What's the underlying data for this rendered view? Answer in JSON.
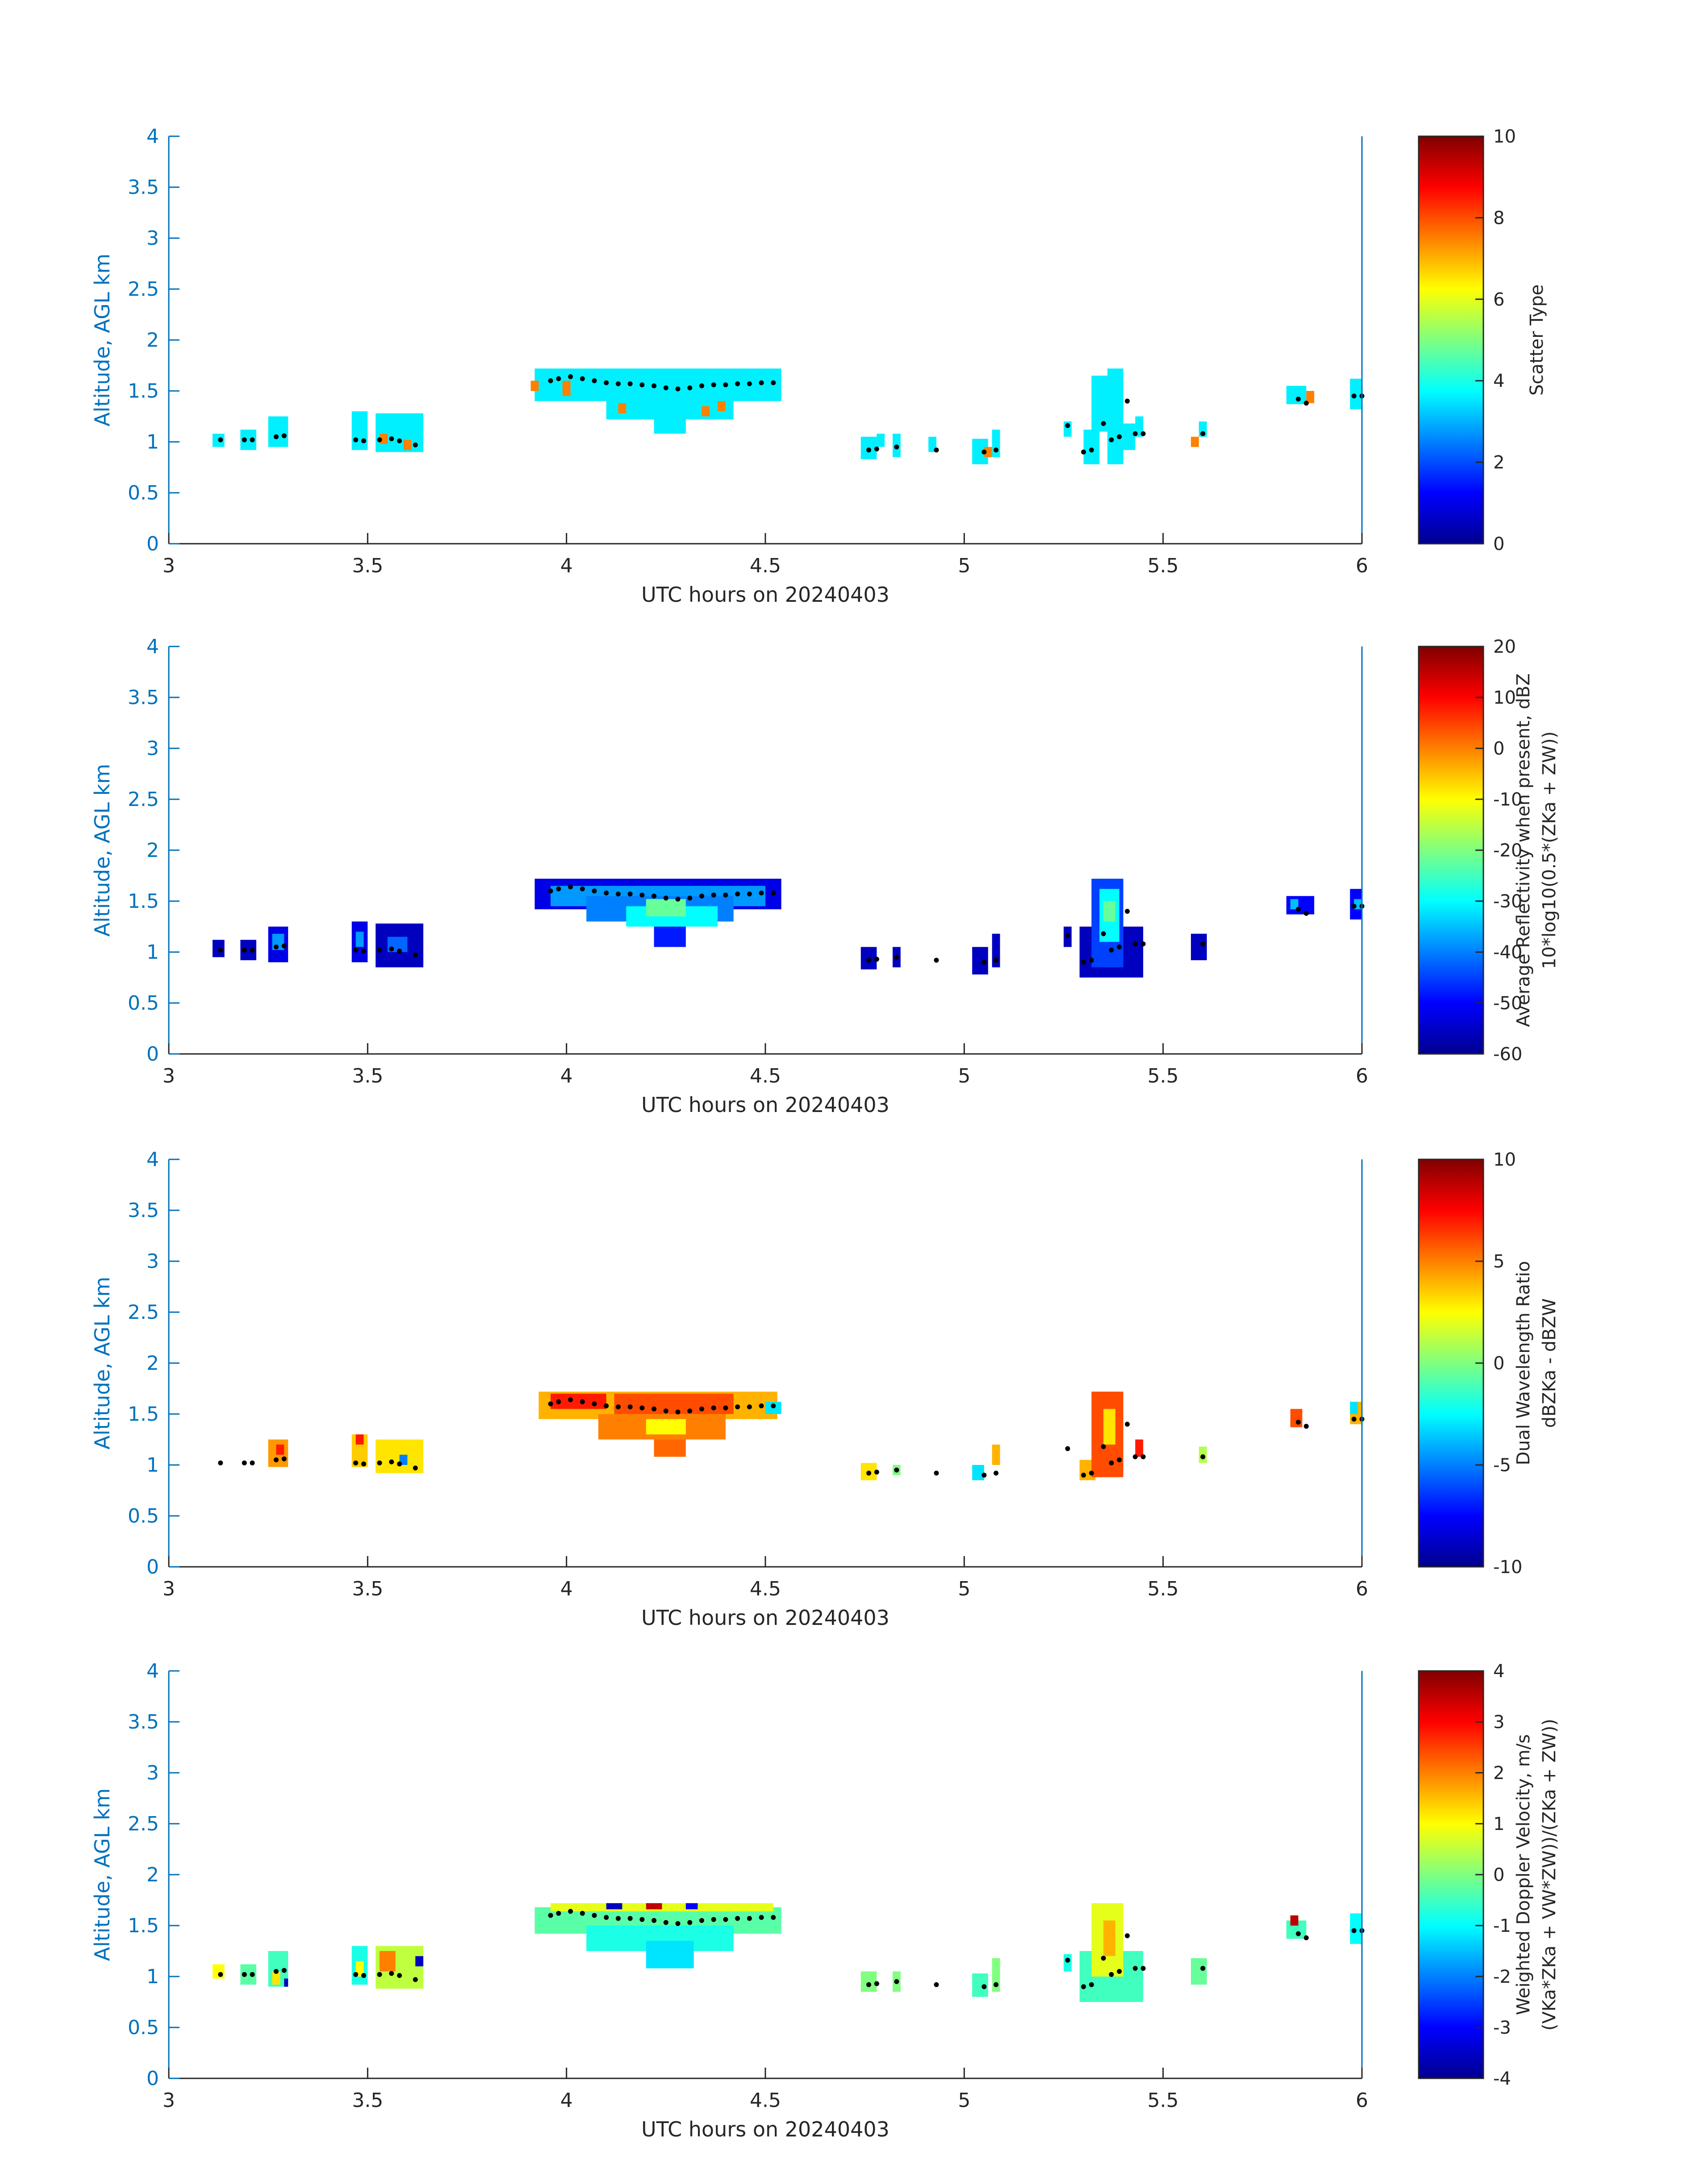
{
  "chart_data": [
    {
      "type": "heatmap",
      "xlabel": "UTC hours on 20240403",
      "ylabel": "Altitude, AGL km",
      "xlim": [
        3,
        6
      ],
      "ylim": [
        0,
        4
      ],
      "xticks": [
        "3",
        "3.5",
        "4",
        "4.5",
        "5",
        "5.5",
        "6"
      ],
      "yticks": [
        "0",
        "0.5",
        "1",
        "1.5",
        "2",
        "2.5",
        "3",
        "3.5",
        "4"
      ],
      "colorbar": {
        "label": "Scatter Type",
        "sub": "",
        "min": 0,
        "max": 10,
        "ticks": [
          "0",
          "2",
          "4",
          "6",
          "8",
          "10"
        ]
      },
      "colormap": "jet",
      "cells": [
        {
          "x0": 3.11,
          "x1": 3.14,
          "y0": 0.95,
          "y1": 1.08,
          "v": 3.6
        },
        {
          "x0": 3.18,
          "x1": 3.22,
          "y0": 0.92,
          "y1": 1.12,
          "v": 3.6
        },
        {
          "x0": 3.25,
          "x1": 3.3,
          "y0": 0.95,
          "y1": 1.25,
          "v": 3.6
        },
        {
          "x0": 3.46,
          "x1": 3.5,
          "y0": 0.92,
          "y1": 1.3,
          "v": 3.6
        },
        {
          "x0": 3.52,
          "x1": 3.64,
          "y0": 0.9,
          "y1": 1.28,
          "v": 3.6
        },
        {
          "x0": 3.53,
          "x1": 3.55,
          "y0": 0.98,
          "y1": 1.08,
          "v": 7.5
        },
        {
          "x0": 3.59,
          "x1": 3.61,
          "y0": 0.92,
          "y1": 1.02,
          "v": 7.5
        },
        {
          "x0": 3.92,
          "x1": 4.54,
          "y0": 1.4,
          "y1": 1.72,
          "v": 3.6
        },
        {
          "x0": 4.1,
          "x1": 4.42,
          "y0": 1.22,
          "y1": 1.42,
          "v": 3.6
        },
        {
          "x0": 4.22,
          "x1": 4.3,
          "y0": 1.08,
          "y1": 1.24,
          "v": 3.6
        },
        {
          "x0": 3.91,
          "x1": 3.93,
          "y0": 1.5,
          "y1": 1.6,
          "v": 7.5
        },
        {
          "x0": 3.99,
          "x1": 4.01,
          "y0": 1.45,
          "y1": 1.6,
          "v": 7.5
        },
        {
          "x0": 4.13,
          "x1": 4.15,
          "y0": 1.28,
          "y1": 1.38,
          "v": 7.5
        },
        {
          "x0": 4.34,
          "x1": 4.36,
          "y0": 1.25,
          "y1": 1.35,
          "v": 7.5
        },
        {
          "x0": 4.38,
          "x1": 4.4,
          "y0": 1.3,
          "y1": 1.4,
          "v": 7.5
        },
        {
          "x0": 4.74,
          "x1": 4.78,
          "y0": 0.83,
          "y1": 1.05,
          "v": 3.6
        },
        {
          "x0": 4.78,
          "x1": 4.8,
          "y0": 0.95,
          "y1": 1.08,
          "v": 3.6
        },
        {
          "x0": 4.82,
          "x1": 4.84,
          "y0": 0.85,
          "y1": 1.08,
          "v": 3.6
        },
        {
          "x0": 4.91,
          "x1": 4.93,
          "y0": 0.9,
          "y1": 1.05,
          "v": 3.6
        },
        {
          "x0": 5.02,
          "x1": 5.06,
          "y0": 0.78,
          "y1": 1.03,
          "v": 3.6
        },
        {
          "x0": 5.07,
          "x1": 5.09,
          "y0": 0.85,
          "y1": 1.12,
          "v": 3.6
        },
        {
          "x0": 5.05,
          "x1": 5.07,
          "y0": 0.85,
          "y1": 0.95,
          "v": 7.5
        },
        {
          "x0": 5.25,
          "x1": 5.27,
          "y0": 1.05,
          "y1": 1.2,
          "v": 3.6
        },
        {
          "x0": 5.3,
          "x1": 5.34,
          "y0": 0.78,
          "y1": 1.12,
          "v": 3.6
        },
        {
          "x0": 5.32,
          "x1": 5.37,
          "y0": 1.1,
          "y1": 1.65,
          "v": 3.6
        },
        {
          "x0": 5.36,
          "x1": 5.4,
          "y0": 0.78,
          "y1": 1.72,
          "v": 3.6
        },
        {
          "x0": 5.4,
          "x1": 5.43,
          "y0": 0.92,
          "y1": 1.18,
          "v": 3.6
        },
        {
          "x0": 5.43,
          "x1": 5.45,
          "y0": 1.05,
          "y1": 1.25,
          "v": 3.6
        },
        {
          "x0": 5.57,
          "x1": 5.59,
          "y0": 0.95,
          "y1": 1.05,
          "v": 7.5
        },
        {
          "x0": 5.59,
          "x1": 5.61,
          "y0": 1.05,
          "y1": 1.2,
          "v": 3.6
        },
        {
          "x0": 5.81,
          "x1": 5.86,
          "y0": 1.37,
          "y1": 1.55,
          "v": 3.6
        },
        {
          "x0": 5.86,
          "x1": 5.88,
          "y0": 1.38,
          "y1": 1.5,
          "v": 7.5
        },
        {
          "x0": 5.97,
          "x1": 6.0,
          "y0": 1.32,
          "y1": 1.62,
          "v": 3.6
        }
      ]
    },
    {
      "type": "heatmap",
      "xlabel": "UTC hours on 20240403",
      "ylabel": "Altitude, AGL km",
      "xlim": [
        3,
        6
      ],
      "ylim": [
        0,
        4
      ],
      "xticks": [
        "3",
        "3.5",
        "4",
        "4.5",
        "5",
        "5.5",
        "6"
      ],
      "yticks": [
        "0",
        "0.5",
        "1",
        "1.5",
        "2",
        "2.5",
        "3",
        "3.5",
        "4"
      ],
      "colorbar": {
        "label": "Average Reflectivity when present, dBZ",
        "sub": "10*log10(0.5*(ZKa + ZW))",
        "min": -60,
        "max": 20,
        "ticks": [
          "-60",
          "-50",
          "-40",
          "-30",
          "-20",
          "-10",
          "0",
          "10",
          "20"
        ]
      },
      "colormap": "jet",
      "cells": [
        {
          "x0": 3.11,
          "x1": 3.14,
          "y0": 0.95,
          "y1": 1.12,
          "v": -55
        },
        {
          "x0": 3.18,
          "x1": 3.22,
          "y0": 0.92,
          "y1": 1.12,
          "v": -55
        },
        {
          "x0": 3.25,
          "x1": 3.3,
          "y0": 0.9,
          "y1": 1.25,
          "v": -52
        },
        {
          "x0": 3.26,
          "x1": 3.29,
          "y0": 1.02,
          "y1": 1.18,
          "v": -38
        },
        {
          "x0": 3.46,
          "x1": 3.5,
          "y0": 0.9,
          "y1": 1.3,
          "v": -52
        },
        {
          "x0": 3.47,
          "x1": 3.49,
          "y0": 1.05,
          "y1": 1.2,
          "v": -38
        },
        {
          "x0": 3.52,
          "x1": 3.64,
          "y0": 0.85,
          "y1": 1.28,
          "v": -55
        },
        {
          "x0": 3.55,
          "x1": 3.6,
          "y0": 1.0,
          "y1": 1.15,
          "v": -42
        },
        {
          "x0": 3.92,
          "x1": 4.54,
          "y0": 1.42,
          "y1": 1.72,
          "v": -52
        },
        {
          "x0": 3.96,
          "x1": 4.5,
          "y0": 1.45,
          "y1": 1.65,
          "v": -38
        },
        {
          "x0": 4.05,
          "x1": 4.42,
          "y0": 1.3,
          "y1": 1.55,
          "v": -40
        },
        {
          "x0": 4.15,
          "x1": 4.38,
          "y0": 1.25,
          "y1": 1.45,
          "v": -30
        },
        {
          "x0": 4.22,
          "x1": 4.3,
          "y0": 1.05,
          "y1": 1.25,
          "v": -48
        },
        {
          "x0": 4.2,
          "x1": 4.3,
          "y0": 1.35,
          "y1": 1.52,
          "v": -22
        },
        {
          "x0": 4.74,
          "x1": 4.78,
          "y0": 0.83,
          "y1": 1.05,
          "v": -55
        },
        {
          "x0": 4.82,
          "x1": 4.84,
          "y0": 0.85,
          "y1": 1.05,
          "v": -55
        },
        {
          "x0": 5.02,
          "x1": 5.06,
          "y0": 0.78,
          "y1": 1.05,
          "v": -55
        },
        {
          "x0": 5.07,
          "x1": 5.09,
          "y0": 0.85,
          "y1": 1.18,
          "v": -55
        },
        {
          "x0": 5.25,
          "x1": 5.27,
          "y0": 1.05,
          "y1": 1.25,
          "v": -55
        },
        {
          "x0": 5.29,
          "x1": 5.45,
          "y0": 0.75,
          "y1": 1.25,
          "v": -55
        },
        {
          "x0": 5.32,
          "x1": 5.4,
          "y0": 0.85,
          "y1": 1.72,
          "v": -45
        },
        {
          "x0": 5.34,
          "x1": 5.39,
          "y0": 1.1,
          "y1": 1.62,
          "v": -30
        },
        {
          "x0": 5.35,
          "x1": 5.38,
          "y0": 1.3,
          "y1": 1.5,
          "v": -22
        },
        {
          "x0": 5.57,
          "x1": 5.61,
          "y0": 0.92,
          "y1": 1.18,
          "v": -55
        },
        {
          "x0": 5.81,
          "x1": 5.88,
          "y0": 1.37,
          "y1": 1.55,
          "v": -50
        },
        {
          "x0": 5.82,
          "x1": 5.84,
          "y0": 1.42,
          "y1": 1.52,
          "v": -35
        },
        {
          "x0": 5.97,
          "x1": 6.0,
          "y0": 1.32,
          "y1": 1.62,
          "v": -50
        },
        {
          "x0": 5.98,
          "x1": 6.0,
          "y0": 1.42,
          "y1": 1.52,
          "v": -35
        }
      ]
    },
    {
      "type": "heatmap",
      "xlabel": "UTC hours on 20240403",
      "ylabel": "Altitude, AGL km",
      "xlim": [
        3,
        6
      ],
      "ylim": [
        0,
        4
      ],
      "xticks": [
        "3",
        "3.5",
        "4",
        "4.5",
        "5",
        "5.5",
        "6"
      ],
      "yticks": [
        "0",
        "0.5",
        "1",
        "1.5",
        "2",
        "2.5",
        "3",
        "3.5",
        "4"
      ],
      "colorbar": {
        "label": "Dual Wavelength Ratio",
        "sub": "dBZKa - dBZW",
        "min": -10,
        "max": 10,
        "ticks": [
          "-10",
          "-5",
          "0",
          "5",
          "10"
        ]
      },
      "colormap": "jet",
      "cells": [
        {
          "x0": 3.25,
          "x1": 3.3,
          "y0": 0.98,
          "y1": 1.25,
          "v": 4.5
        },
        {
          "x0": 3.27,
          "x1": 3.29,
          "y0": 1.1,
          "y1": 1.2,
          "v": 7
        },
        {
          "x0": 3.46,
          "x1": 3.5,
          "y0": 0.98,
          "y1": 1.3,
          "v": 3.5
        },
        {
          "x0": 3.47,
          "x1": 3.49,
          "y0": 1.2,
          "y1": 1.3,
          "v": 7
        },
        {
          "x0": 3.52,
          "x1": 3.64,
          "y0": 0.92,
          "y1": 1.25,
          "v": 3
        },
        {
          "x0": 3.58,
          "x1": 3.6,
          "y0": 1.0,
          "y1": 1.1,
          "v": -5
        },
        {
          "x0": 3.93,
          "x1": 4.53,
          "y0": 1.45,
          "y1": 1.72,
          "v": 4
        },
        {
          "x0": 3.96,
          "x1": 4.1,
          "y0": 1.55,
          "y1": 1.7,
          "v": 7
        },
        {
          "x0": 4.12,
          "x1": 4.42,
          "y0": 1.5,
          "y1": 1.7,
          "v": 6
        },
        {
          "x0": 4.08,
          "x1": 4.4,
          "y0": 1.25,
          "y1": 1.5,
          "v": 5
        },
        {
          "x0": 4.22,
          "x1": 4.3,
          "y0": 1.08,
          "y1": 1.25,
          "v": 5.5
        },
        {
          "x0": 4.2,
          "x1": 4.3,
          "y0": 1.3,
          "y1": 1.45,
          "v": 2.5
        },
        {
          "x0": 4.5,
          "x1": 4.54,
          "y0": 1.5,
          "y1": 1.62,
          "v": -3
        },
        {
          "x0": 4.74,
          "x1": 4.78,
          "y0": 0.85,
          "y1": 1.02,
          "v": 3
        },
        {
          "x0": 4.82,
          "x1": 4.84,
          "y0": 0.9,
          "y1": 1.0,
          "v": 0
        },
        {
          "x0": 5.02,
          "x1": 5.05,
          "y0": 0.85,
          "y1": 1.0,
          "v": -3
        },
        {
          "x0": 5.07,
          "x1": 5.09,
          "y0": 1.0,
          "y1": 1.2,
          "v": 4
        },
        {
          "x0": 5.29,
          "x1": 5.33,
          "y0": 0.85,
          "y1": 1.05,
          "v": 4
        },
        {
          "x0": 5.32,
          "x1": 5.4,
          "y0": 0.88,
          "y1": 1.72,
          "v": 6
        },
        {
          "x0": 5.35,
          "x1": 5.38,
          "y0": 1.2,
          "y1": 1.55,
          "v": 3
        },
        {
          "x0": 5.43,
          "x1": 5.45,
          "y0": 1.08,
          "y1": 1.25,
          "v": 7
        },
        {
          "x0": 5.59,
          "x1": 5.61,
          "y0": 1.02,
          "y1": 1.18,
          "v": 1
        },
        {
          "x0": 5.82,
          "x1": 5.85,
          "y0": 1.37,
          "y1": 1.55,
          "v": 6
        },
        {
          "x0": 5.97,
          "x1": 6.0,
          "y0": 1.4,
          "y1": 1.62,
          "v": 4
        },
        {
          "x0": 5.97,
          "x1": 5.99,
          "y0": 1.5,
          "y1": 1.62,
          "v": -3
        }
      ]
    },
    {
      "type": "heatmap",
      "xlabel": "UTC hours on 20240403",
      "ylabel": "Altitude, AGL km",
      "xlim": [
        3,
        6
      ],
      "ylim": [
        0,
        4
      ],
      "xticks": [
        "3",
        "3.5",
        "4",
        "4.5",
        "5",
        "5.5",
        "6"
      ],
      "yticks": [
        "0",
        "0.5",
        "1",
        "1.5",
        "2",
        "2.5",
        "3",
        "3.5",
        "4"
      ],
      "colorbar": {
        "label": "Weighted Doppler Velocity, m/s",
        "sub": "(VKa*ZKa + VW*ZW))/(ZKa + ZW))",
        "min": -4,
        "max": 4,
        "ticks": [
          "-4",
          "-3",
          "-2",
          "-1",
          "0",
          "1",
          "2",
          "3",
          "4"
        ]
      },
      "colormap": "jet",
      "cells": [
        {
          "x0": 3.11,
          "x1": 3.14,
          "y0": 0.98,
          "y1": 1.12,
          "v": 1
        },
        {
          "x0": 3.18,
          "x1": 3.22,
          "y0": 0.92,
          "y1": 1.12,
          "v": -0.3
        },
        {
          "x0": 3.25,
          "x1": 3.3,
          "y0": 0.9,
          "y1": 1.25,
          "v": -0.5
        },
        {
          "x0": 3.26,
          "x1": 3.28,
          "y0": 0.92,
          "y1": 1.05,
          "v": 1.2
        },
        {
          "x0": 3.29,
          "x1": 3.3,
          "y0": 0.9,
          "y1": 0.98,
          "v": -3.5
        },
        {
          "x0": 3.46,
          "x1": 3.5,
          "y0": 0.92,
          "y1": 1.3,
          "v": -0.8
        },
        {
          "x0": 3.47,
          "x1": 3.49,
          "y0": 1.0,
          "y1": 1.15,
          "v": 1
        },
        {
          "x0": 3.52,
          "x1": 3.64,
          "y0": 0.88,
          "y1": 1.3,
          "v": 0.5
        },
        {
          "x0": 3.53,
          "x1": 3.57,
          "y0": 1.05,
          "y1": 1.25,
          "v": 2
        },
        {
          "x0": 3.62,
          "x1": 3.64,
          "y0": 1.1,
          "y1": 1.2,
          "v": -3.5
        },
        {
          "x0": 3.92,
          "x1": 4.54,
          "y0": 1.42,
          "y1": 1.68,
          "v": -0.3
        },
        {
          "x0": 4.05,
          "x1": 4.42,
          "y0": 1.25,
          "y1": 1.5,
          "v": -0.8
        },
        {
          "x0": 4.2,
          "x1": 4.32,
          "y0": 1.08,
          "y1": 1.35,
          "v": -1.2
        },
        {
          "x0": 3.96,
          "x1": 4.52,
          "y0": 1.64,
          "y1": 1.72,
          "v": 0.8
        },
        {
          "x0": 4.1,
          "x1": 4.14,
          "y0": 1.66,
          "y1": 1.72,
          "v": -3.5
        },
        {
          "x0": 4.2,
          "x1": 4.24,
          "y0": 1.66,
          "y1": 1.72,
          "v": 3.5
        },
        {
          "x0": 4.3,
          "x1": 4.33,
          "y0": 1.66,
          "y1": 1.72,
          "v": -3
        },
        {
          "x0": 4.74,
          "x1": 4.78,
          "y0": 0.85,
          "y1": 1.05,
          "v": 0
        },
        {
          "x0": 4.82,
          "x1": 4.84,
          "y0": 0.85,
          "y1": 1.05,
          "v": 0
        },
        {
          "x0": 5.02,
          "x1": 5.06,
          "y0": 0.8,
          "y1": 1.03,
          "v": -0.5
        },
        {
          "x0": 5.07,
          "x1": 5.09,
          "y0": 0.85,
          "y1": 1.18,
          "v": 0
        },
        {
          "x0": 5.25,
          "x1": 5.27,
          "y0": 1.05,
          "y1": 1.22,
          "v": -0.8
        },
        {
          "x0": 5.29,
          "x1": 5.45,
          "y0": 0.75,
          "y1": 1.25,
          "v": -0.5
        },
        {
          "x0": 5.32,
          "x1": 5.4,
          "y0": 1.0,
          "y1": 1.72,
          "v": 0.8
        },
        {
          "x0": 5.35,
          "x1": 5.38,
          "y0": 1.2,
          "y1": 1.55,
          "v": 1.6
        },
        {
          "x0": 5.57,
          "x1": 5.61,
          "y0": 0.92,
          "y1": 1.18,
          "v": -0.2
        },
        {
          "x0": 5.81,
          "x1": 5.86,
          "y0": 1.37,
          "y1": 1.55,
          "v": -0.5
        },
        {
          "x0": 5.82,
          "x1": 5.84,
          "y0": 1.5,
          "y1": 1.6,
          "v": 3.5
        },
        {
          "x0": 5.97,
          "x1": 6.0,
          "y0": 1.32,
          "y1": 1.62,
          "v": -1
        }
      ]
    }
  ],
  "cloud_base_trace": {
    "x": [
      3.13,
      3.19,
      3.21,
      3.27,
      3.29,
      3.47,
      3.49,
      3.53,
      3.56,
      3.58,
      3.62,
      3.96,
      3.98,
      4.01,
      4.04,
      4.07,
      4.1,
      4.13,
      4.16,
      4.19,
      4.22,
      4.25,
      4.28,
      4.31,
      4.34,
      4.37,
      4.4,
      4.43,
      4.46,
      4.49,
      4.52,
      4.76,
      4.78,
      4.83,
      4.93,
      5.05,
      5.08,
      5.26,
      5.3,
      5.32,
      5.35,
      5.37,
      5.39,
      5.41,
      5.43,
      5.45,
      5.6,
      5.84,
      5.86,
      5.98,
      6.0
    ],
    "y": [
      1.02,
      1.02,
      1.02,
      1.05,
      1.06,
      1.02,
      1.01,
      1.02,
      1.03,
      1.01,
      0.97,
      1.6,
      1.62,
      1.64,
      1.62,
      1.6,
      1.58,
      1.57,
      1.57,
      1.56,
      1.55,
      1.53,
      1.52,
      1.53,
      1.55,
      1.56,
      1.56,
      1.57,
      1.57,
      1.58,
      1.58,
      0.92,
      0.93,
      0.95,
      0.92,
      0.9,
      0.92,
      1.16,
      0.9,
      0.92,
      1.18,
      1.02,
      1.05,
      1.4,
      1.08,
      1.08,
      1.08,
      1.42,
      1.38,
      1.45,
      1.45
    ]
  },
  "colors": {
    "axis_blue": "#0072BD",
    "text_dark": "#262626",
    "bar_outline": "#262626"
  }
}
